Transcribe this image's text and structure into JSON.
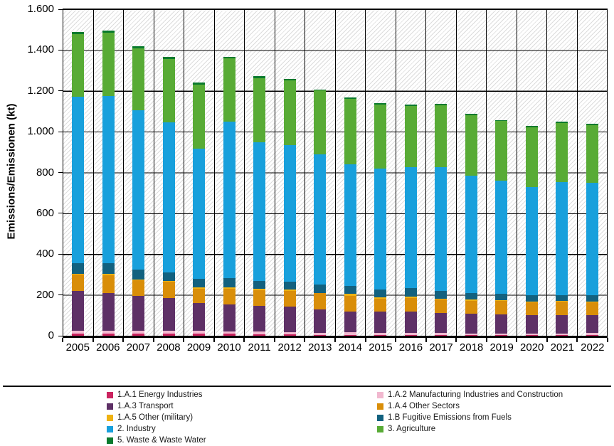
{
  "y_axis": {
    "ticks_bottom_to_top": [
      "0",
      "200",
      "400",
      "600",
      "800",
      "1.000",
      "1.200",
      "1.400",
      "1.600"
    ]
  },
  "chart_data": {
    "type": "bar",
    "stacked": true,
    "title": "",
    "xlabel": "",
    "ylabel": "Emissions/Emissionen (kt)",
    "ylim": [
      0,
      1600
    ],
    "grid": true,
    "legend_position": "bottom-two-columns",
    "categories": [
      "2005",
      "2006",
      "2007",
      "2008",
      "2009",
      "2010",
      "2011",
      "2012",
      "2013",
      "2014",
      "2015",
      "2016",
      "2017",
      "2018",
      "2019",
      "2020",
      "2021",
      "2022"
    ],
    "series": [
      {
        "name": "1.A.1 Energy Industries",
        "color": "#CB2460",
        "values": [
          12,
          12,
          12,
          12,
          10,
          10,
          8,
          7,
          5,
          5,
          4,
          4,
          4,
          4,
          4,
          4,
          4,
          4
        ]
      },
      {
        "name": "1.A.2 Manufacturing Industries and Construction",
        "color": "#F1B8CF",
        "values": [
          12,
          12,
          14,
          14,
          14,
          12,
          12,
          12,
          10,
          11,
          9,
          9,
          9,
          8,
          8,
          8,
          8,
          10
        ]
      },
      {
        "name": "1.A.3 Transport",
        "color": "#5E3066",
        "values": [
          196,
          184,
          168,
          159,
          136,
          132,
          126,
          123,
          113,
          104,
          104,
          107,
          100,
          96,
          93,
          90,
          90,
          86
        ]
      },
      {
        "name": "1.A.4 Other Sectors",
        "color": "#D98E09",
        "values": [
          80,
          90,
          78,
          79,
          71,
          75,
          78,
          76,
          80,
          77,
          63,
          66,
          64,
          64,
          65,
          63,
          66,
          63
        ]
      },
      {
        "name": "1.A.5 Other (military)",
        "color": "#EFB211",
        "values": [
          5,
          5,
          5,
          5,
          6,
          8,
          7,
          8,
          3,
          8,
          9,
          6,
          6,
          5,
          5,
          4,
          4,
          4
        ]
      },
      {
        "name": "1.B Fugitive Emissions from Fuels",
        "color": "#12617F",
        "values": [
          52,
          52,
          46,
          40,
          43,
          46,
          38,
          40,
          41,
          38,
          37,
          40,
          35,
          33,
          30,
          30,
          28,
          33
        ]
      },
      {
        "name": "2. Industry",
        "color": "#18A0DC",
        "values": [
          813,
          821,
          782,
          736,
          637,
          766,
          681,
          670,
          637,
          598,
          593,
          594,
          609,
          574,
          555,
          530,
          553,
          550
        ]
      },
      {
        "name": "3. Agriculture",
        "color": "#58AB35",
        "values": [
          310,
          310,
          305,
          310,
          313,
          309,
          312,
          314,
          313,
          321,
          315,
          300,
          303,
          298,
          292,
          293,
          289,
          282
        ]
      },
      {
        "name": "5. Waste & Waste Water",
        "color": "#0A7A2D",
        "values": [
          10,
          10,
          10,
          10,
          10,
          10,
          10,
          10,
          6,
          6,
          6,
          6,
          6,
          6,
          6,
          6,
          6,
          6
        ]
      }
    ]
  },
  "legend": {
    "left_column_series_indices": [
      0,
      2,
      4,
      6,
      8
    ],
    "right_column_series_indices": [
      1,
      3,
      5,
      7
    ]
  }
}
